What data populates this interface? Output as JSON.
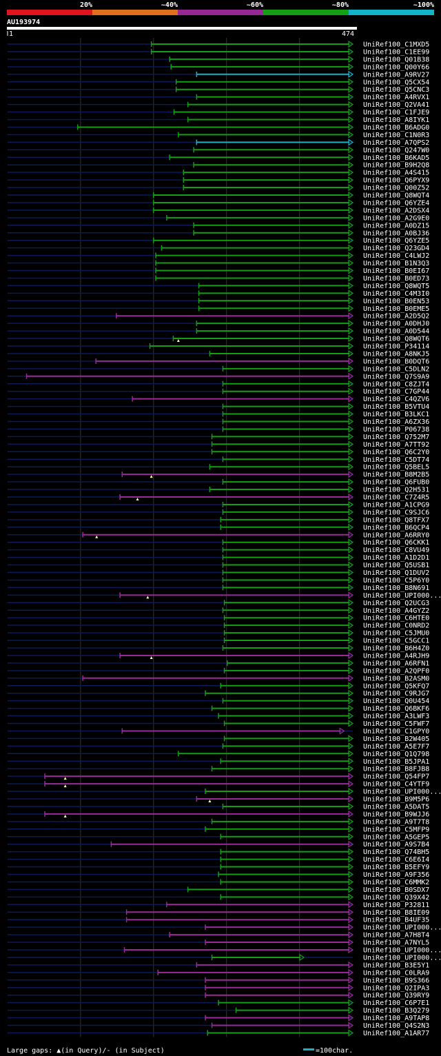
{
  "query_id": "AU193974",
  "query_start": "1",
  "query_end": "474",
  "query_length": 474,
  "colors": {
    "background": "#000000",
    "query_bar": "#ffffff",
    "gridline": "#333333",
    "unaligned": "#0a1a5a",
    "green": "#12a012",
    "magenta": "#9a2a9a",
    "cyan": "#14b4c8"
  },
  "identity_legend": [
    {
      "label": "20%",
      "color": "#e0141e"
    },
    {
      "label": "~40%",
      "color": "#e0701e"
    },
    {
      "label": "~60%",
      "color": "#962896"
    },
    {
      "label": "~80%",
      "color": "#14a014"
    },
    {
      "label": "~100%",
      "color": "#14b4c8"
    }
  ],
  "footer": {
    "gaps_text": "Large gaps: ▲(in Query)/- (in Subject)",
    "scale_text": "=100char."
  },
  "chart_data": {
    "type": "alignment",
    "x_range": [
      1,
      474
    ],
    "hits": [
      {
        "name": "UniRef100_C1MXD5",
        "start": 198,
        "end": 474,
        "color": "green",
        "arrow": true
      },
      {
        "name": "UniRef100_C1EE99",
        "start": 198,
        "end": 474,
        "color": "green",
        "arrow": true
      },
      {
        "name": "UniRef100_Q01B38",
        "start": 223,
        "end": 474,
        "color": "green",
        "arrow": true
      },
      {
        "name": "UniRef100_Q00Y66",
        "start": 225,
        "end": 474,
        "color": "green",
        "arrow": true
      },
      {
        "name": "UniRef100_A9RV27",
        "start": 260,
        "end": 474,
        "color": "cyan",
        "arrow": true
      },
      {
        "name": "UniRef100_Q5CX54",
        "start": 232,
        "end": 474,
        "color": "green",
        "arrow": true
      },
      {
        "name": "UniRef100_Q5CNC3",
        "start": 232,
        "end": 474,
        "color": "green",
        "arrow": true
      },
      {
        "name": "UniRef100_A4RVX1",
        "start": 260,
        "end": 474,
        "color": "green",
        "arrow": true
      },
      {
        "name": "UniRef100_Q2VA41",
        "start": 248,
        "end": 474,
        "color": "green",
        "arrow": true
      },
      {
        "name": "UniRef100_C1FJE9",
        "start": 229,
        "end": 474,
        "color": "green",
        "arrow": true
      },
      {
        "name": "UniRef100_A8IYK1",
        "start": 248,
        "end": 474,
        "color": "green",
        "arrow": true
      },
      {
        "name": "UniRef100_B6ADG0",
        "start": 97,
        "end": 474,
        "color": "green",
        "arrow": true
      },
      {
        "name": "UniRef100_C1N0R3",
        "start": 235,
        "end": 474,
        "color": "green",
        "arrow": true
      },
      {
        "name": "UniRef100_A7QPS2",
        "start": 260,
        "end": 474,
        "color": "cyan",
        "arrow": true
      },
      {
        "name": "UniRef100_Q247W0",
        "start": 256,
        "end": 474,
        "color": "green",
        "arrow": true
      },
      {
        "name": "UniRef100_B6KAD5",
        "start": 223,
        "end": 474,
        "color": "green",
        "arrow": true
      },
      {
        "name": "UniRef100_B9H2Q8",
        "start": 256,
        "end": 474,
        "color": "green",
        "arrow": true
      },
      {
        "name": "UniRef100_A4S415",
        "start": 242,
        "end": 474,
        "color": "green",
        "arrow": true
      },
      {
        "name": "UniRef100_Q6PYX9",
        "start": 242,
        "end": 474,
        "color": "green",
        "arrow": true
      },
      {
        "name": "UniRef100_Q00Z52",
        "start": 242,
        "end": 474,
        "color": "green",
        "arrow": true
      },
      {
        "name": "UniRef100_Q8WQT4",
        "start": 201,
        "end": 474,
        "color": "green",
        "arrow": true
      },
      {
        "name": "UniRef100_Q6YZE4",
        "start": 201,
        "end": 474,
        "color": "green",
        "arrow": true
      },
      {
        "name": "UniRef100_A2DSX4",
        "start": 201,
        "end": 474,
        "color": "green",
        "arrow": true
      },
      {
        "name": "UniRef100_A2G9E0",
        "start": 219,
        "end": 474,
        "color": "green",
        "arrow": true
      },
      {
        "name": "UniRef100_A0DZ15",
        "start": 256,
        "end": 474,
        "color": "green",
        "arrow": true
      },
      {
        "name": "UniRef100_A0BJ36",
        "start": 256,
        "end": 474,
        "color": "green",
        "arrow": true
      },
      {
        "name": "UniRef100_Q6YZE5",
        "start": 201,
        "end": 474,
        "color": "green",
        "arrow": true
      },
      {
        "name": "UniRef100_Q23GD4",
        "start": 212,
        "end": 474,
        "color": "green",
        "arrow": true
      },
      {
        "name": "UniRef100_C4LWJ2",
        "start": 204,
        "end": 474,
        "color": "green",
        "arrow": true
      },
      {
        "name": "UniRef100_B1N3Q3",
        "start": 204,
        "end": 474,
        "color": "green",
        "arrow": true
      },
      {
        "name": "UniRef100_B0EI67",
        "start": 204,
        "end": 474,
        "color": "green",
        "arrow": true
      },
      {
        "name": "UniRef100_B0ED73",
        "start": 204,
        "end": 474,
        "color": "green",
        "arrow": true
      },
      {
        "name": "UniRef100_Q8WQT5",
        "start": 263,
        "end": 474,
        "color": "green",
        "arrow": true
      },
      {
        "name": "UniRef100_C4M3I0",
        "start": 263,
        "end": 474,
        "color": "green",
        "arrow": true
      },
      {
        "name": "UniRef100_B0EN53",
        "start": 263,
        "end": 474,
        "color": "green",
        "arrow": true
      },
      {
        "name": "UniRef100_B0EME5",
        "start": 263,
        "end": 474,
        "color": "green",
        "arrow": true
      },
      {
        "name": "UniRef100_A2D5Q2",
        "start": 150,
        "end": 474,
        "color": "magenta",
        "arrow": true
      },
      {
        "name": "UniRef100_A0DHJ0",
        "start": 260,
        "end": 474,
        "color": "green",
        "arrow": true
      },
      {
        "name": "UniRef100_A0D544",
        "start": 260,
        "end": 474,
        "color": "green",
        "arrow": true
      },
      {
        "name": "UniRef100_Q8WQT6",
        "start": 228,
        "end": 474,
        "color": "green",
        "arrow": true,
        "qgap": 235
      },
      {
        "name": "UniRef100_P34114",
        "start": 196,
        "end": 474,
        "color": "green",
        "arrow": true
      },
      {
        "name": "UniRef100_A8NKJ5",
        "start": 278,
        "end": 474,
        "color": "green",
        "arrow": true
      },
      {
        "name": "UniRef100_B0DQT6",
        "start": 122,
        "end": 474,
        "color": "magenta",
        "arrow": true
      },
      {
        "name": "UniRef100_C5DLN2",
        "start": 296,
        "end": 474,
        "color": "green",
        "arrow": true
      },
      {
        "name": "UniRef100_Q7S9A9",
        "start": 27,
        "end": 474,
        "color": "magenta",
        "arrow": true
      },
      {
        "name": "UniRef100_C8ZJT4",
        "start": 296,
        "end": 474,
        "color": "green",
        "arrow": true
      },
      {
        "name": "UniRef100_C7GP44",
        "start": 296,
        "end": 474,
        "color": "green",
        "arrow": true
      },
      {
        "name": "UniRef100_C4QZV6",
        "start": 172,
        "end": 474,
        "color": "magenta",
        "arrow": true
      },
      {
        "name": "UniRef100_B5VTU4",
        "start": 296,
        "end": 474,
        "color": "green",
        "arrow": true
      },
      {
        "name": "UniRef100_B3LKC1",
        "start": 296,
        "end": 474,
        "color": "green",
        "arrow": true
      },
      {
        "name": "UniRef100_A6ZX36",
        "start": 296,
        "end": 474,
        "color": "green",
        "arrow": true
      },
      {
        "name": "UniRef100_P06738",
        "start": 296,
        "end": 474,
        "color": "green",
        "arrow": true
      },
      {
        "name": "UniRef100_Q752M7",
        "start": 281,
        "end": 474,
        "color": "green",
        "arrow": true
      },
      {
        "name": "UniRef100_A7TT92",
        "start": 281,
        "end": 474,
        "color": "green",
        "arrow": true
      },
      {
        "name": "UniRef100_Q6C2Y0",
        "start": 281,
        "end": 474,
        "color": "green",
        "arrow": true
      },
      {
        "name": "UniRef100_C5DT74",
        "start": 296,
        "end": 474,
        "color": "green",
        "arrow": true
      },
      {
        "name": "UniRef100_Q5BEL5",
        "start": 278,
        "end": 474,
        "color": "green",
        "arrow": true
      },
      {
        "name": "UniRef100_B8M2B5",
        "start": 158,
        "end": 474,
        "color": "magenta",
        "arrow": true,
        "qgap": 198
      },
      {
        "name": "UniRef100_Q6FUB0",
        "start": 296,
        "end": 474,
        "color": "green",
        "arrow": true
      },
      {
        "name": "UniRef100_Q2H531",
        "start": 278,
        "end": 474,
        "color": "green",
        "arrow": true
      },
      {
        "name": "UniRef100_C7Z4R5",
        "start": 155,
        "end": 474,
        "color": "magenta",
        "arrow": true,
        "qgap": 179
      },
      {
        "name": "UniRef100_A1CPG9",
        "start": 296,
        "end": 474,
        "color": "green",
        "arrow": true
      },
      {
        "name": "UniRef100_C9SJC6",
        "start": 296,
        "end": 474,
        "color": "green",
        "arrow": true
      },
      {
        "name": "UniRef100_Q8TFX7",
        "start": 293,
        "end": 474,
        "color": "green",
        "arrow": true
      },
      {
        "name": "UniRef100_B6QCP4",
        "start": 293,
        "end": 474,
        "color": "green",
        "arrow": true
      },
      {
        "name": "UniRef100_A6RRY0",
        "start": 104,
        "end": 474,
        "color": "magenta",
        "arrow": true,
        "qgap": 123
      },
      {
        "name": "UniRef100_Q6CKK1",
        "start": 296,
        "end": 474,
        "color": "green",
        "arrow": true
      },
      {
        "name": "UniRef100_C8VU49",
        "start": 296,
        "end": 474,
        "color": "green",
        "arrow": true
      },
      {
        "name": "UniRef100_A1D2D1",
        "start": 296,
        "end": 474,
        "color": "green",
        "arrow": true
      },
      {
        "name": "UniRef100_Q5USB1",
        "start": 296,
        "end": 474,
        "color": "green",
        "arrow": true
      },
      {
        "name": "UniRef100_Q1DUV2",
        "start": 296,
        "end": 474,
        "color": "green",
        "arrow": true
      },
      {
        "name": "UniRef100_C5P6Y0",
        "start": 296,
        "end": 474,
        "color": "green",
        "arrow": true
      },
      {
        "name": "UniRef100_B8N691",
        "start": 296,
        "end": 474,
        "color": "green",
        "arrow": true
      },
      {
        "name": "UniRef100_UPI000...",
        "start": 155,
        "end": 474,
        "color": "magenta",
        "arrow": true,
        "qgap": 193
      },
      {
        "name": "UniRef100_Q2UCG3",
        "start": 298,
        "end": 474,
        "color": "green",
        "arrow": true
      },
      {
        "name": "UniRef100_A4GYZ2",
        "start": 296,
        "end": 474,
        "color": "green",
        "arrow": true
      },
      {
        "name": "UniRef100_C6HTE0",
        "start": 298,
        "end": 474,
        "color": "green",
        "arrow": true
      },
      {
        "name": "UniRef100_C0NRD2",
        "start": 298,
        "end": 474,
        "color": "green",
        "arrow": true
      },
      {
        "name": "UniRef100_C5JMU0",
        "start": 298,
        "end": 474,
        "color": "green",
        "arrow": true
      },
      {
        "name": "UniRef100_C5GCC1",
        "start": 298,
        "end": 474,
        "color": "green",
        "arrow": true
      },
      {
        "name": "UniRef100_B6H4Z0",
        "start": 296,
        "end": 474,
        "color": "green",
        "arrow": true
      },
      {
        "name": "UniRef100_A4RJH9",
        "start": 155,
        "end": 474,
        "color": "magenta",
        "arrow": true,
        "qgap": 198
      },
      {
        "name": "UniRef100_A6RFN1",
        "start": 302,
        "end": 474,
        "color": "green",
        "arrow": true
      },
      {
        "name": "UniRef100_A2QPF0",
        "start": 298,
        "end": 474,
        "color": "green",
        "arrow": true
      },
      {
        "name": "UniRef100_B2ASM0",
        "start": 104,
        "end": 474,
        "color": "magenta",
        "arrow": true
      },
      {
        "name": "UniRef100_Q5KFQ7",
        "start": 293,
        "end": 474,
        "color": "green",
        "arrow": true
      },
      {
        "name": "UniRef100_C9RJG7",
        "start": 272,
        "end": 474,
        "color": "green",
        "arrow": true
      },
      {
        "name": "UniRef100_Q0U454",
        "start": 296,
        "end": 474,
        "color": "green",
        "arrow": true
      },
      {
        "name": "UniRef100_Q6BKF6",
        "start": 281,
        "end": 474,
        "color": "green",
        "arrow": true
      },
      {
        "name": "UniRef100_A3LWF3",
        "start": 290,
        "end": 474,
        "color": "green",
        "arrow": true
      },
      {
        "name": "UniRef100_C5FWF7",
        "start": 298,
        "end": 474,
        "color": "green",
        "arrow": true
      },
      {
        "name": "UniRef100_C1GPY0",
        "start": 158,
        "end": 462,
        "color": "magenta",
        "arrow": true
      },
      {
        "name": "UniRef100_B2W405",
        "start": 298,
        "end": 474,
        "color": "green",
        "arrow": true
      },
      {
        "name": "UniRef100_A5E7F7",
        "start": 296,
        "end": 474,
        "color": "green",
        "arrow": true
      },
      {
        "name": "UniRef100_Q1Q798",
        "start": 235,
        "end": 474,
        "color": "green",
        "arrow": true
      },
      {
        "name": "UniRef100_B5JPA1",
        "start": 293,
        "end": 474,
        "color": "green",
        "arrow": true
      },
      {
        "name": "UniRef100_B8FJB8",
        "start": 281,
        "end": 474,
        "color": "green",
        "arrow": true
      },
      {
        "name": "UniRef100_Q54FP7",
        "start": 52,
        "end": 474,
        "color": "magenta",
        "arrow": true,
        "qgap": 80
      },
      {
        "name": "UniRef100_C4YTF9",
        "start": 52,
        "end": 474,
        "color": "magenta",
        "arrow": true,
        "qgap": 80
      },
      {
        "name": "UniRef100_UPI000...",
        "start": 272,
        "end": 474,
        "color": "green",
        "arrow": true
      },
      {
        "name": "UniRef100_B9M5P6",
        "start": 260,
        "end": 474,
        "color": "magenta",
        "arrow": true,
        "qgap": 278
      },
      {
        "name": "UniRef100_A5DAT5",
        "start": 296,
        "end": 474,
        "color": "green",
        "arrow": true
      },
      {
        "name": "UniRef100_B9WJJ6",
        "start": 52,
        "end": 474,
        "color": "magenta",
        "arrow": true,
        "qgap": 80
      },
      {
        "name": "UniRef100_A9T7T8",
        "start": 281,
        "end": 474,
        "color": "green",
        "arrow": true
      },
      {
        "name": "UniRef100_C5MFP9",
        "start": 272,
        "end": 474,
        "color": "green",
        "arrow": true
      },
      {
        "name": "UniRef100_A5GEP5",
        "start": 293,
        "end": 474,
        "color": "green",
        "arrow": true
      },
      {
        "name": "UniRef100_A9S7B4",
        "start": 143,
        "end": 474,
        "color": "magenta",
        "arrow": true
      },
      {
        "name": "UniRef100_Q74BH5",
        "start": 293,
        "end": 474,
        "color": "green",
        "arrow": true
      },
      {
        "name": "UniRef100_C6E6I4",
        "start": 293,
        "end": 474,
        "color": "green",
        "arrow": true
      },
      {
        "name": "UniRef100_B5EFY9",
        "start": 293,
        "end": 474,
        "color": "green",
        "arrow": true
      },
      {
        "name": "UniRef100_A9F356",
        "start": 290,
        "end": 474,
        "color": "green",
        "arrow": true
      },
      {
        "name": "UniRef100_C6MMK2",
        "start": 293,
        "end": 474,
        "color": "green",
        "arrow": true
      },
      {
        "name": "UniRef100_B0SDX7",
        "start": 248,
        "end": 474,
        "color": "green",
        "arrow": true
      },
      {
        "name": "UniRef100_Q39X42",
        "start": 293,
        "end": 474,
        "color": "green",
        "arrow": true
      },
      {
        "name": "UniRef100_P32811",
        "start": 219,
        "end": 474,
        "color": "magenta",
        "arrow": true
      },
      {
        "name": "UniRef100_B8IE09",
        "start": 164,
        "end": 474,
        "color": "magenta",
        "arrow": true
      },
      {
        "name": "UniRef100_B4UF35",
        "start": 164,
        "end": 474,
        "color": "magenta",
        "arrow": true
      },
      {
        "name": "UniRef100_UPI000...",
        "start": 272,
        "end": 474,
        "color": "magenta",
        "arrow": true
      },
      {
        "name": "UniRef100_A7H8T4",
        "start": 223,
        "end": 474,
        "color": "magenta",
        "arrow": true
      },
      {
        "name": "UniRef100_A7NYL5",
        "start": 272,
        "end": 474,
        "color": "magenta",
        "arrow": true
      },
      {
        "name": "UniRef100_UPI000...",
        "start": 161,
        "end": 474,
        "color": "magenta",
        "arrow": true
      },
      {
        "name": "UniRef100_UPI000...",
        "start": 281,
        "end": 407,
        "color": "green",
        "arrow": true
      },
      {
        "name": "UniRef100_B3E5Y1",
        "start": 260,
        "end": 474,
        "color": "magenta",
        "arrow": true
      },
      {
        "name": "UniRef100_C0LRA9",
        "start": 207,
        "end": 474,
        "color": "magenta",
        "arrow": true
      },
      {
        "name": "UniRef100_B9S366",
        "start": 272,
        "end": 474,
        "color": "magenta",
        "arrow": true
      },
      {
        "name": "UniRef100_Q2IPA3",
        "start": 272,
        "end": 474,
        "color": "magenta",
        "arrow": true
      },
      {
        "name": "UniRef100_Q39RY9",
        "start": 272,
        "end": 474,
        "color": "magenta",
        "arrow": true
      },
      {
        "name": "UniRef100_C6P7E1",
        "start": 290,
        "end": 474,
        "color": "green",
        "arrow": true
      },
      {
        "name": "UniRef100_B3Q279",
        "start": 314,
        "end": 474,
        "color": "green",
        "arrow": true
      },
      {
        "name": "UniRef100_A9TAP8",
        "start": 272,
        "end": 474,
        "color": "magenta",
        "arrow": true
      },
      {
        "name": "UniRef100_Q4S2N3",
        "start": 281,
        "end": 474,
        "color": "magenta",
        "arrow": true
      },
      {
        "name": "UniRef100_A1AR77",
        "start": 275,
        "end": 474,
        "color": "green",
        "arrow": true
      }
    ]
  }
}
